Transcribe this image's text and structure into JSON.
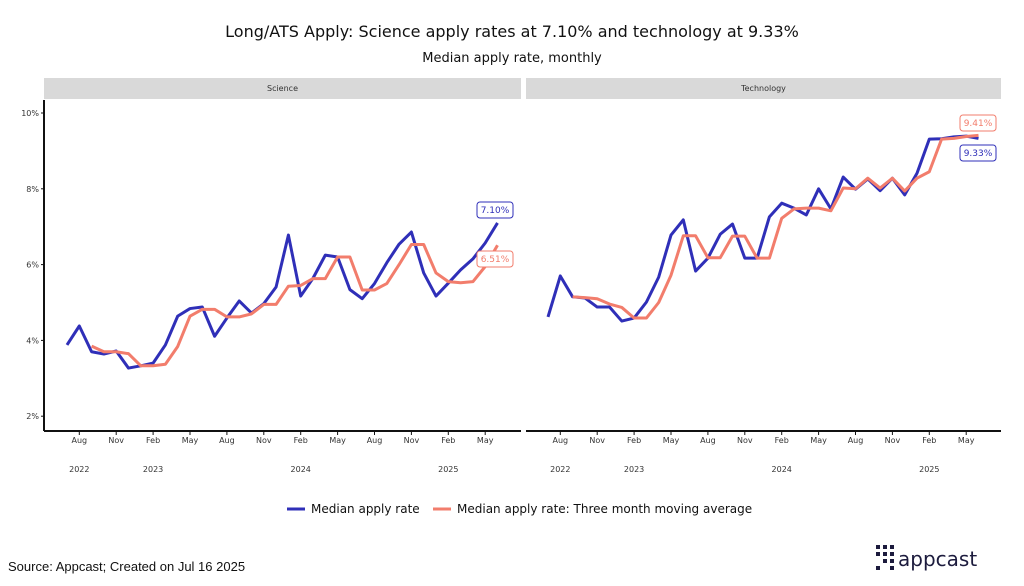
{
  "title": "Long/ATS Apply: Science apply rates at 7.10% and technology at 9.33%",
  "subtitle": "Median apply rate, monthly",
  "source": "Source: Appcast; Created on Jul 16 2025",
  "logo_text": "appcast",
  "colors": {
    "median": "#2f2fb8",
    "moving_avg": "#f27d6c",
    "strip": "#d9d9d9"
  },
  "chart_data": [
    {
      "type": "line",
      "facet": "Science",
      "x_start": "2022-07",
      "x_tick_labels": [
        "Aug",
        "Nov",
        "Feb",
        "May",
        "Aug",
        "Nov",
        "Feb",
        "May",
        "Aug",
        "Nov",
        "Feb",
        "May"
      ],
      "year_labels": [
        "2022",
        "2023",
        "2024",
        "2025"
      ],
      "y_ticks": [
        "2%",
        "4%",
        "6%",
        "8%",
        "10%"
      ],
      "ylim": [
        1.2,
        10.3
      ],
      "series": [
        {
          "name": "Median apply rate",
          "start": "2022-07",
          "values": [
            3.88,
            4.38,
            3.7,
            3.64,
            3.72,
            3.27,
            3.33,
            3.4,
            3.88,
            4.64,
            4.84,
            4.88,
            4.11,
            4.59,
            5.04,
            4.72,
            4.97,
            5.41,
            6.78,
            5.17,
            5.64,
            6.25,
            6.2,
            5.34,
            5.1,
            5.5,
            6.05,
            6.54,
            6.86,
            5.78,
            5.17,
            5.51,
            5.86,
            6.15,
            6.57,
            7.1
          ],
          "end_label": "7.10%"
        },
        {
          "name": "Median apply rate: Three month moving average",
          "start": "2022-09",
          "values": [
            3.85,
            3.7,
            3.7,
            3.65,
            3.33,
            3.33,
            3.37,
            3.84,
            4.64,
            4.82,
            4.82,
            4.62,
            4.62,
            4.7,
            4.95,
            4.95,
            5.43,
            5.45,
            5.63,
            5.63,
            6.2,
            6.2,
            5.33,
            5.33,
            5.5,
            6.0,
            6.53,
            6.53,
            5.78,
            5.55,
            5.52,
            5.55,
            5.95,
            6.51
          ],
          "end_label": "6.51%"
        }
      ]
    },
    {
      "type": "line",
      "facet": "Technology",
      "x_start": "2022-07",
      "x_tick_labels": [
        "Aug",
        "Nov",
        "Feb",
        "May",
        "Aug",
        "Nov",
        "Feb",
        "May",
        "Aug",
        "Nov",
        "Feb",
        "May"
      ],
      "year_labels": [
        "2022",
        "2023",
        "2024",
        "2025"
      ],
      "ylim": [
        1.2,
        10.3
      ],
      "series": [
        {
          "name": "Median apply rate",
          "start": "2022-07",
          "values": [
            4.62,
            5.7,
            5.15,
            5.12,
            4.88,
            4.88,
            4.51,
            4.59,
            5.01,
            5.67,
            6.78,
            7.18,
            5.83,
            6.17,
            6.8,
            7.07,
            6.17,
            6.17,
            7.26,
            7.62,
            7.49,
            7.31,
            8.0,
            7.47,
            8.31,
            7.99,
            8.26,
            7.95,
            8.28,
            7.84,
            8.41,
            9.31,
            9.32,
            9.37,
            9.39,
            9.33
          ],
          "end_label": "9.33%"
        },
        {
          "name": "Median apply rate: Three month moving average",
          "start": "2022-09",
          "values": [
            5.15,
            5.13,
            5.1,
            4.96,
            4.87,
            4.59,
            4.59,
            5.0,
            5.72,
            6.76,
            6.76,
            6.18,
            6.18,
            6.75,
            6.75,
            6.17,
            6.17,
            7.22,
            7.47,
            7.49,
            7.49,
            7.42,
            8.02,
            8.0,
            8.28,
            8.02,
            8.28,
            7.94,
            8.28,
            8.45,
            9.31,
            9.33,
            9.38,
            9.41
          ],
          "end_label": "9.41%"
        }
      ]
    }
  ],
  "legend": [
    "Median apply rate",
    "Median apply rate: Three month moving average"
  ]
}
